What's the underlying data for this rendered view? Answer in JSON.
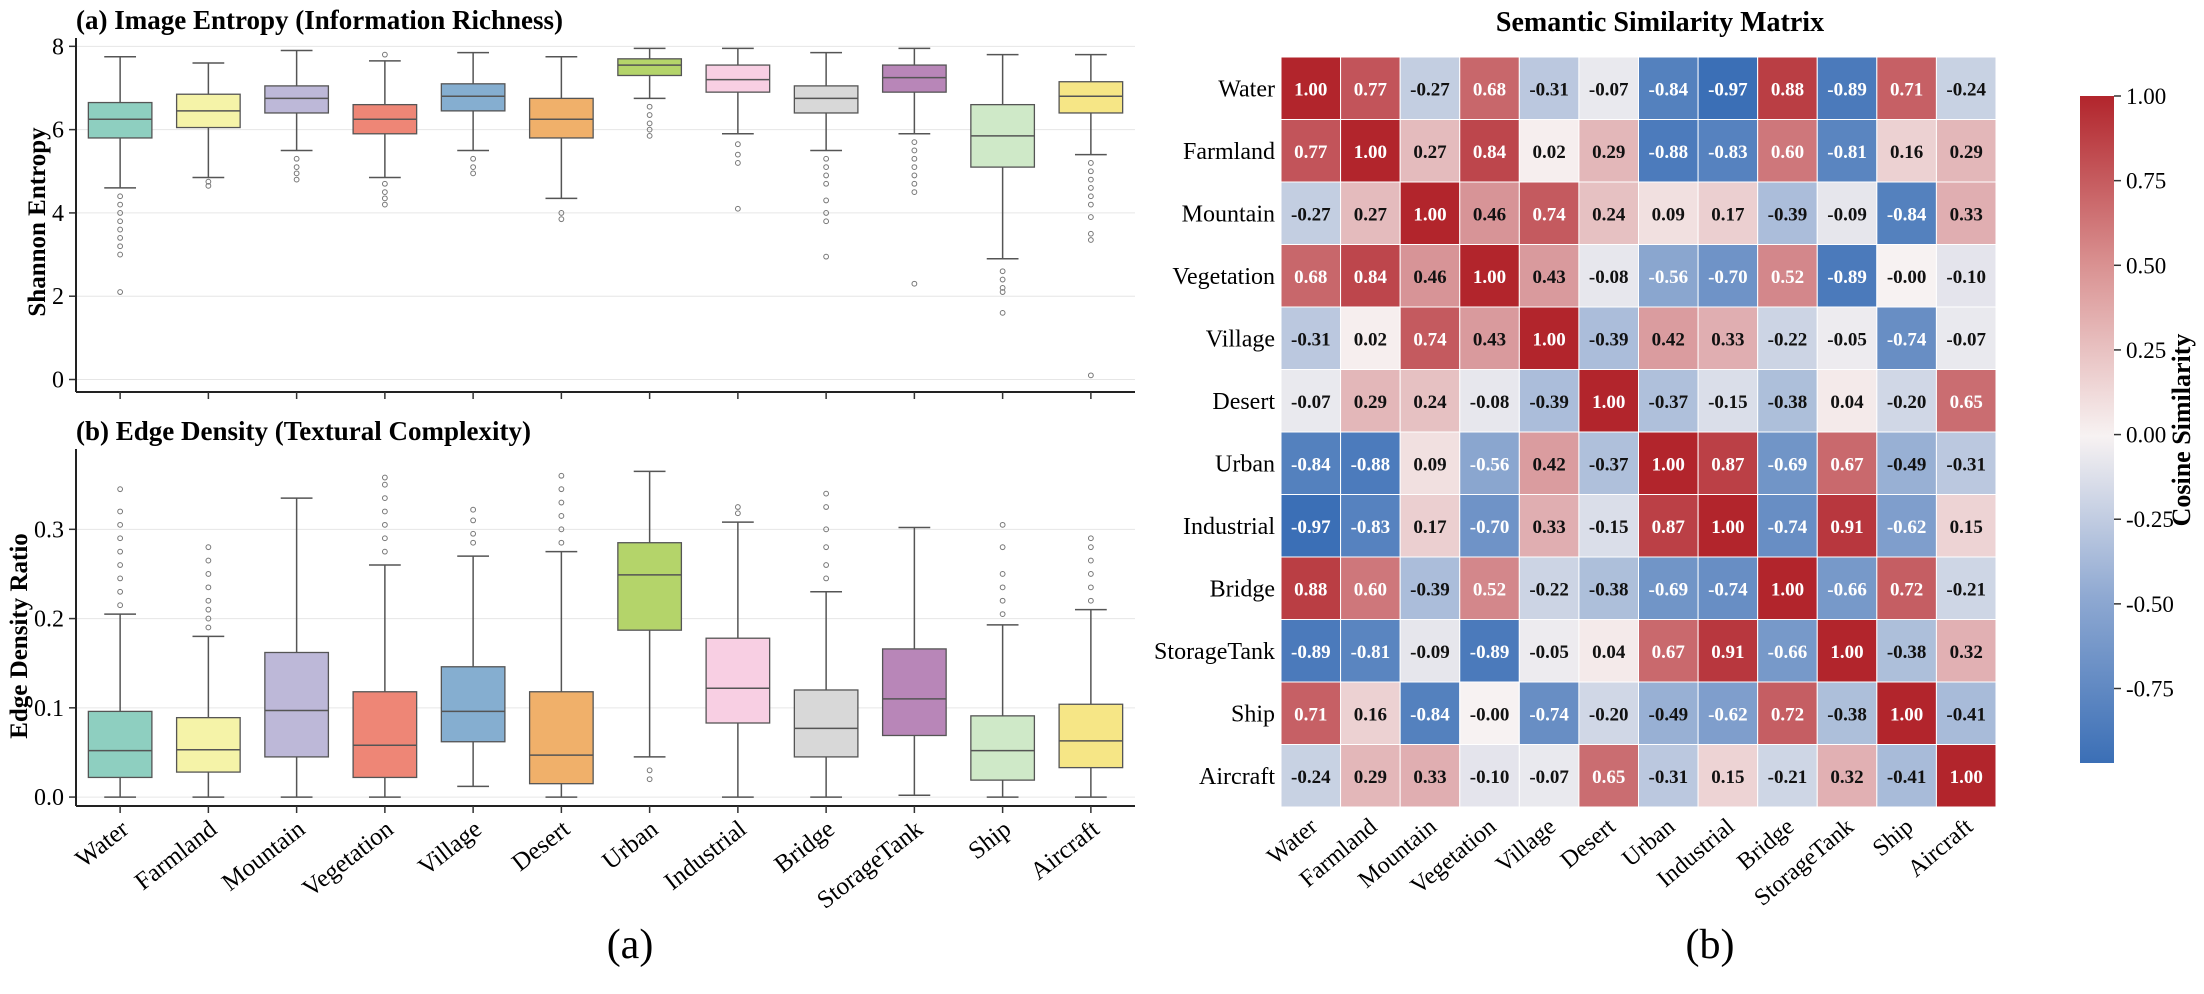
{
  "figure_labels": {
    "a": "(a)",
    "b": "(b)"
  },
  "colors": {
    "Water": "#8ecfc0",
    "Farmland": "#f5f3a8",
    "Mountain": "#bdb8d8",
    "Vegetation": "#ee8676",
    "Village": "#85aed0",
    "Desert": "#f0b06a",
    "Urban": "#b4d46a",
    "Industrial": "#f8cfe3",
    "Bridge": "#d8d8d8",
    "StorageTank": "#b886b8",
    "Ship": "#cfe9c8",
    "Aircraft": "#f6e686",
    "heat_low": "#3b6fb6",
    "heat_mid": "#f7f2f2",
    "heat_high": "#b2252c"
  },
  "chart_data": [
    {
      "type": "box",
      "title": "(a) Image Entropy (Information Richness)",
      "xlabel": "",
      "ylabel": "Shannon Entropy",
      "ylim": [
        -0.3,
        8.2
      ],
      "yticks": [
        0,
        2,
        4,
        6,
        8
      ],
      "categories": [
        "Water",
        "Farmland",
        "Mountain",
        "Vegetation",
        "Village",
        "Desert",
        "Urban",
        "Industrial",
        "Bridge",
        "StorageTank",
        "Ship",
        "Aircraft"
      ],
      "boxes": [
        {
          "whislo": 4.6,
          "q1": 5.8,
          "med": 6.25,
          "q3": 6.65,
          "whishi": 7.75,
          "fliers": [
            4.4,
            4.2,
            4.0,
            3.8,
            3.6,
            3.4,
            3.2,
            3.0,
            2.1
          ]
        },
        {
          "whislo": 4.85,
          "q1": 6.05,
          "med": 6.45,
          "q3": 6.85,
          "whishi": 7.6,
          "fliers": [
            4.75,
            4.65
          ]
        },
        {
          "whislo": 5.5,
          "q1": 6.4,
          "med": 6.75,
          "q3": 7.05,
          "whishi": 7.9,
          "fliers": [
            5.3,
            5.1,
            4.95,
            4.8
          ]
        },
        {
          "whislo": 4.85,
          "q1": 5.9,
          "med": 6.25,
          "q3": 6.6,
          "whishi": 7.65,
          "fliers": [
            7.8,
            4.7,
            4.5,
            4.35,
            4.2
          ]
        },
        {
          "whislo": 5.5,
          "q1": 6.45,
          "med": 6.8,
          "q3": 7.1,
          "whishi": 7.85,
          "fliers": [
            5.3,
            5.1,
            4.95
          ]
        },
        {
          "whislo": 4.35,
          "q1": 5.8,
          "med": 6.25,
          "q3": 6.75,
          "whishi": 7.75,
          "fliers": [
            4.0,
            3.85
          ]
        },
        {
          "whislo": 6.75,
          "q1": 7.3,
          "med": 7.55,
          "q3": 7.7,
          "whishi": 7.95,
          "fliers": [
            6.55,
            6.35,
            6.15,
            6.0,
            5.85
          ]
        },
        {
          "whislo": 5.9,
          "q1": 6.9,
          "med": 7.2,
          "q3": 7.55,
          "whishi": 7.95,
          "fliers": [
            5.65,
            5.4,
            5.2,
            4.1
          ]
        },
        {
          "whislo": 5.5,
          "q1": 6.4,
          "med": 6.75,
          "q3": 7.05,
          "whishi": 7.85,
          "fliers": [
            5.3,
            5.1,
            4.9,
            4.7,
            4.3,
            4.0,
            3.8,
            2.95
          ]
        },
        {
          "whislo": 5.9,
          "q1": 6.9,
          "med": 7.25,
          "q3": 7.55,
          "whishi": 7.95,
          "fliers": [
            5.7,
            5.5,
            5.3,
            5.1,
            4.9,
            4.7,
            4.5,
            2.3
          ]
        },
        {
          "whislo": 2.9,
          "q1": 5.1,
          "med": 5.85,
          "q3": 6.6,
          "whishi": 7.8,
          "fliers": [
            2.6,
            2.4,
            2.2,
            2.1,
            1.6
          ]
        },
        {
          "whislo": 5.4,
          "q1": 6.4,
          "med": 6.8,
          "q3": 7.15,
          "whishi": 7.8,
          "fliers": [
            5.2,
            5.0,
            4.8,
            4.6,
            4.4,
            4.2,
            3.9,
            3.5,
            3.35,
            0.1
          ]
        }
      ]
    },
    {
      "type": "box",
      "title": "(b) Edge Density (Textural Complexity)",
      "xlabel": "",
      "ylabel": "Edge Density Ratio",
      "ylim": [
        -0.01,
        0.39
      ],
      "yticks": [
        0.0,
        0.1,
        0.2,
        0.3
      ],
      "ytick_labels": [
        "0.0",
        "0.1",
        "0.2",
        "0.3"
      ],
      "categories": [
        "Water",
        "Farmland",
        "Mountain",
        "Vegetation",
        "Village",
        "Desert",
        "Urban",
        "Industrial",
        "Bridge",
        "StorageTank",
        "Ship",
        "Aircraft"
      ],
      "boxes": [
        {
          "whislo": 0.0,
          "q1": 0.022,
          "med": 0.052,
          "q3": 0.096,
          "whishi": 0.205,
          "fliers": [
            0.215,
            0.23,
            0.245,
            0.26,
            0.275,
            0.29,
            0.305,
            0.32,
            0.345
          ]
        },
        {
          "whislo": 0.0,
          "q1": 0.028,
          "med": 0.053,
          "q3": 0.089,
          "whishi": 0.18,
          "fliers": [
            0.19,
            0.2,
            0.21,
            0.22,
            0.235,
            0.25,
            0.265,
            0.28
          ]
        },
        {
          "whislo": 0.0,
          "q1": 0.045,
          "med": 0.097,
          "q3": 0.162,
          "whishi": 0.335,
          "fliers": []
        },
        {
          "whislo": 0.0,
          "q1": 0.022,
          "med": 0.058,
          "q3": 0.118,
          "whishi": 0.26,
          "fliers": [
            0.275,
            0.29,
            0.305,
            0.32,
            0.335,
            0.35,
            0.358
          ]
        },
        {
          "whislo": 0.012,
          "q1": 0.062,
          "med": 0.096,
          "q3": 0.146,
          "whishi": 0.27,
          "fliers": [
            0.285,
            0.295,
            0.31,
            0.322
          ]
        },
        {
          "whislo": 0.0,
          "q1": 0.015,
          "med": 0.047,
          "q3": 0.118,
          "whishi": 0.275,
          "fliers": [
            0.285,
            0.3,
            0.315,
            0.33,
            0.345,
            0.36
          ]
        },
        {
          "whislo": 0.045,
          "q1": 0.187,
          "med": 0.249,
          "q3": 0.285,
          "whishi": 0.365,
          "fliers": [
            0.03,
            0.02
          ]
        },
        {
          "whislo": 0.0,
          "q1": 0.083,
          "med": 0.122,
          "q3": 0.178,
          "whishi": 0.308,
          "fliers": [
            0.318,
            0.325
          ]
        },
        {
          "whislo": 0.0,
          "q1": 0.045,
          "med": 0.077,
          "q3": 0.12,
          "whishi": 0.23,
          "fliers": [
            0.245,
            0.26,
            0.28,
            0.3,
            0.325,
            0.34
          ]
        },
        {
          "whislo": 0.002,
          "q1": 0.069,
          "med": 0.11,
          "q3": 0.166,
          "whishi": 0.302,
          "fliers": []
        },
        {
          "whislo": 0.0,
          "q1": 0.019,
          "med": 0.052,
          "q3": 0.091,
          "whishi": 0.193,
          "fliers": [
            0.205,
            0.22,
            0.235,
            0.25,
            0.28,
            0.305
          ]
        },
        {
          "whislo": 0.0,
          "q1": 0.033,
          "med": 0.063,
          "q3": 0.104,
          "whishi": 0.21,
          "fliers": [
            0.22,
            0.235,
            0.25,
            0.265,
            0.28,
            0.29
          ]
        }
      ]
    },
    {
      "type": "heatmap",
      "title": "Semantic Similarity Matrix",
      "labels": [
        "Water",
        "Farmland",
        "Mountain",
        "Vegetation",
        "Village",
        "Desert",
        "Urban",
        "Industrial",
        "Bridge",
        "StorageTank",
        "Ship",
        "Aircraft"
      ],
      "colorbar_label": "Cosine Similarity",
      "colorbar_ticks": [
        "1.00",
        "0.75",
        "0.50",
        "0.25",
        "0.00",
        "-0.25",
        "-0.50",
        "-0.75"
      ],
      "vmin": -0.97,
      "vmax": 1.0,
      "matrix": [
        [
          "1.00",
          "0.77",
          "-0.27",
          "0.68",
          "-0.31",
          "-0.07",
          "-0.84",
          "-0.97",
          "0.88",
          "-0.89",
          "0.71",
          "-0.24"
        ],
        [
          "0.77",
          "1.00",
          "0.27",
          "0.84",
          "0.02",
          "0.29",
          "-0.88",
          "-0.83",
          "0.60",
          "-0.81",
          "0.16",
          "0.29"
        ],
        [
          "-0.27",
          "0.27",
          "1.00",
          "0.46",
          "0.74",
          "0.24",
          "0.09",
          "0.17",
          "-0.39",
          "-0.09",
          "-0.84",
          "0.33"
        ],
        [
          "0.68",
          "0.84",
          "0.46",
          "1.00",
          "0.43",
          "-0.08",
          "-0.56",
          "-0.70",
          "0.52",
          "-0.89",
          "-0.00",
          "-0.10"
        ],
        [
          "-0.31",
          "0.02",
          "0.74",
          "0.43",
          "1.00",
          "-0.39",
          "0.42",
          "0.33",
          "-0.22",
          "-0.05",
          "-0.74",
          "-0.07"
        ],
        [
          "-0.07",
          "0.29",
          "0.24",
          "-0.08",
          "-0.39",
          "1.00",
          "-0.37",
          "-0.15",
          "-0.38",
          "0.04",
          "-0.20",
          "0.65"
        ],
        [
          "-0.84",
          "-0.88",
          "0.09",
          "-0.56",
          "0.42",
          "-0.37",
          "1.00",
          "0.87",
          "-0.69",
          "0.67",
          "-0.49",
          "-0.31"
        ],
        [
          "-0.97",
          "-0.83",
          "0.17",
          "-0.70",
          "0.33",
          "-0.15",
          "0.87",
          "1.00",
          "-0.74",
          "0.91",
          "-0.62",
          "0.15"
        ],
        [
          "0.88",
          "0.60",
          "-0.39",
          "0.52",
          "-0.22",
          "-0.38",
          "-0.69",
          "-0.74",
          "1.00",
          "-0.66",
          "0.72",
          "-0.21"
        ],
        [
          "-0.89",
          "-0.81",
          "-0.09",
          "-0.89",
          "-0.05",
          "0.04",
          "0.67",
          "0.91",
          "-0.66",
          "1.00",
          "-0.38",
          "0.32"
        ],
        [
          "0.71",
          "0.16",
          "-0.84",
          "-0.00",
          "-0.74",
          "-0.20",
          "-0.49",
          "-0.62",
          "0.72",
          "-0.38",
          "1.00",
          "-0.41"
        ],
        [
          "-0.24",
          "0.29",
          "0.33",
          "-0.10",
          "-0.07",
          "0.65",
          "-0.31",
          "0.15",
          "-0.21",
          "0.32",
          "-0.41",
          "1.00"
        ]
      ]
    }
  ]
}
